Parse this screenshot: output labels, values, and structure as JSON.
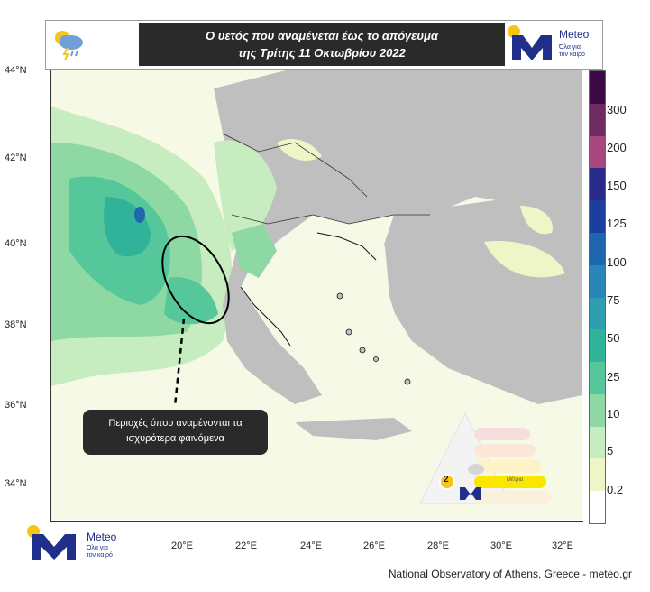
{
  "header": {
    "title_line1": "Ο υετός που αναμένεται έως το απόγευμα",
    "title_line2": "της Τρίτης 11 Οκτωβρίου 2022",
    "weather_icon": "rain-cloud-icon"
  },
  "logo": {
    "name": "Meteo",
    "tagline_line1": "Όλα για",
    "tagline_line2": "τον καιρό"
  },
  "map": {
    "lat_labels": [
      "44°N",
      "42°N",
      "40°N",
      "38°N",
      "36°N",
      "34°N"
    ],
    "lon_labels": [
      "20°E",
      "22°E",
      "24°E",
      "26°E",
      "28°E",
      "30°E",
      "32°E"
    ]
  },
  "colorbar": {
    "labels": [
      "300",
      "200",
      "150",
      "125",
      "100",
      "75",
      "50",
      "25",
      "10",
      "5",
      "0.2"
    ],
    "colors": [
      "#3b0a45",
      "#6e2a62",
      "#a8477e",
      "#2a2a8a",
      "#1b3f9e",
      "#1e66ad",
      "#2a86b8",
      "#2f9fb0",
      "#31b39a",
      "#55c79a",
      "#8ed9a3",
      "#c6ecc0",
      "#eef6c8",
      "#ffffff"
    ]
  },
  "callout": {
    "line1": "Περιοχές όπου αναμένονται τα",
    "line2": "ισχυρότερα φαινόμενα"
  },
  "warning_scale": {
    "level_shown": "2",
    "level_label": "Μέτρια"
  },
  "credit": "National Observatory of Athens, Greece - meteo.gr"
}
